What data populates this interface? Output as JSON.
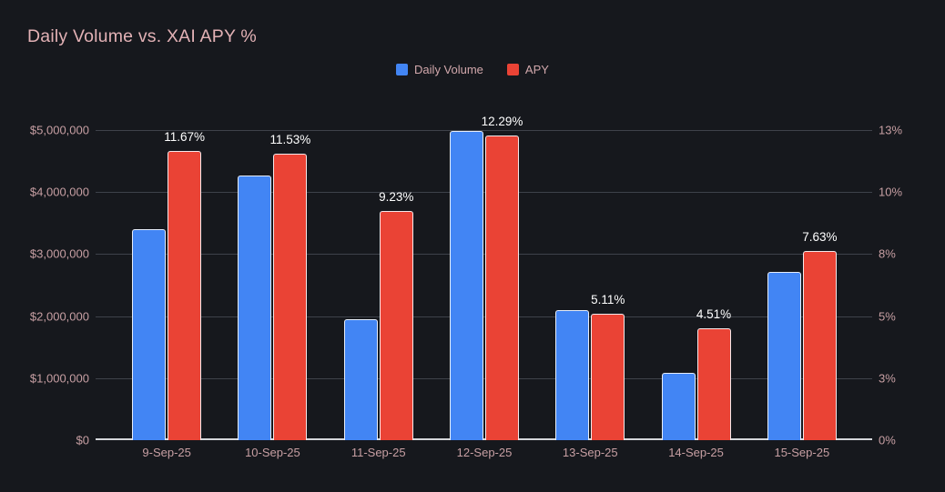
{
  "page": {
    "background_color": "#16181d",
    "title_color": "#e2b1b5",
    "tick_label_color": "#c79fa3",
    "gridline_color": "#3e424a",
    "axis_line_color": "#d4d6da",
    "data_label_color": "#ffffff"
  },
  "chart_data": {
    "type": "bar",
    "title": "Daily Volume vs. XAI APY %",
    "categories": [
      "9-Sep-25",
      "10-Sep-25",
      "11-Sep-25",
      "12-Sep-25",
      "13-Sep-25",
      "14-Sep-25",
      "15-Sep-25"
    ],
    "series": [
      {
        "name": "Daily Volume",
        "color": "#4285f4",
        "axis": "left",
        "values": [
          3400000,
          4270000,
          1950000,
          4990000,
          2100000,
          1080000,
          2710000
        ]
      },
      {
        "name": "APY",
        "color": "#ea4335",
        "axis": "right",
        "values": [
          11.67,
          11.53,
          9.23,
          12.29,
          5.11,
          4.51,
          7.63
        ],
        "data_labels": [
          "11.67%",
          "11.53%",
          "9.23%",
          "12.29%",
          "5.11%",
          "4.51%",
          "7.63%"
        ]
      }
    ],
    "left_axis": {
      "max": 5000000,
      "min": 0,
      "tick_labels": [
        "$5,000,000",
        "$4,000,000",
        "$3,000,000",
        "$2,000,000",
        "$1,000,000",
        "$0"
      ]
    },
    "right_axis": {
      "max": 12.5,
      "min": 0,
      "tick_labels": [
        "13%",
        "10%",
        "8%",
        "5%",
        "3%",
        "0%"
      ]
    },
    "grid": true,
    "legend_position": "top"
  }
}
